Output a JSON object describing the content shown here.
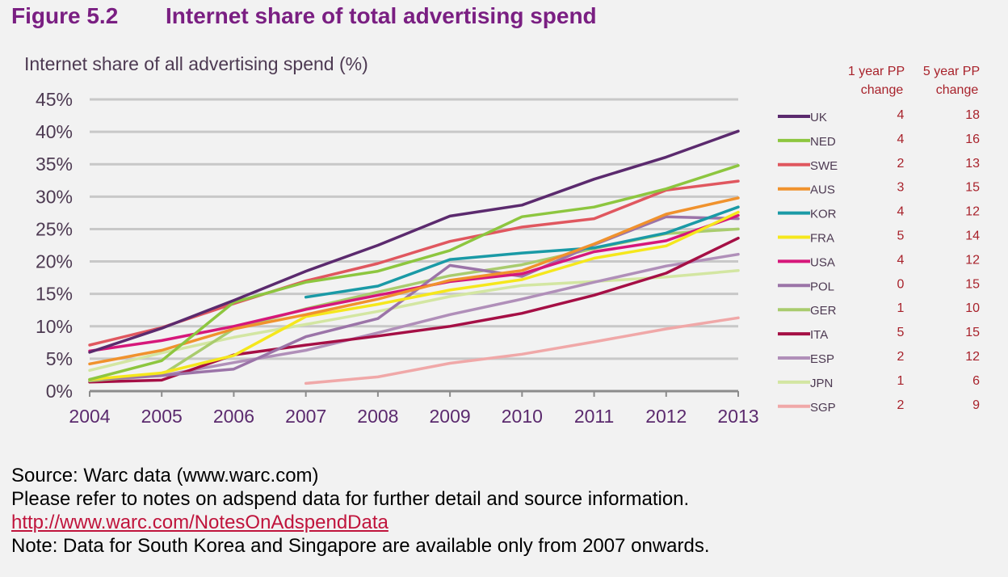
{
  "figure": {
    "number": "Figure 5.2",
    "title": "Internet share of total advertising spend"
  },
  "chart_data": {
    "type": "line",
    "title": "",
    "ylabel": "Internet share of all advertising spend (%)",
    "xlabel": "",
    "x": [
      2004,
      2005,
      2006,
      2007,
      2008,
      2009,
      2010,
      2011,
      2012,
      2013
    ],
    "ylim": [
      0,
      45
    ],
    "yticks": [
      "0%",
      "5%",
      "10%",
      "15%",
      "20%",
      "25%",
      "30%",
      "35%",
      "40%",
      "45%"
    ],
    "grid": true,
    "legend_position": "right",
    "table_headers": [
      "1 year PP change",
      "5 year PP change"
    ],
    "series": [
      {
        "name": "UK",
        "color": "#5b2a6e",
        "one_year": "4",
        "five_year": "18",
        "values": [
          6,
          9.7,
          14,
          18.5,
          22.5,
          27,
          28.7,
          32.7,
          36.1,
          40.1
        ]
      },
      {
        "name": "NED",
        "color": "#8dc63f",
        "one_year": "4",
        "five_year": "16",
        "values": [
          1.8,
          4.7,
          13.7,
          16.8,
          18.5,
          21.7,
          26.9,
          28.4,
          31.2,
          34.8
        ]
      },
      {
        "name": "SWE",
        "color": "#e0575f",
        "one_year": "2",
        "five_year": "13",
        "values": [
          7.1,
          9.8,
          13.5,
          17,
          19.7,
          23.1,
          25.3,
          26.6,
          31,
          32.4
        ]
      },
      {
        "name": "AUS",
        "color": "#f0922d",
        "one_year": "3",
        "five_year": "15",
        "values": [
          4.2,
          6.3,
          9.6,
          11.8,
          14.2,
          17.1,
          18.6,
          22.7,
          27.3,
          29.8
        ]
      },
      {
        "name": "KOR",
        "color": "#1a9aa6",
        "one_year": "4",
        "five_year": "12",
        "values": [
          null,
          null,
          null,
          14.5,
          16.2,
          20.3,
          21.3,
          22.1,
          24.4,
          28.4
        ]
      },
      {
        "name": "FRA",
        "color": "#f5e71c",
        "one_year": "5",
        "five_year": "14",
        "values": [
          1.8,
          2.8,
          5.5,
          11.5,
          13.4,
          15.6,
          17.2,
          20.5,
          22.4,
          27.6
        ]
      },
      {
        "name": "USA",
        "color": "#d6177a",
        "one_year": "4",
        "five_year": "12",
        "values": [
          6.2,
          7.8,
          10,
          12.6,
          14.8,
          16.9,
          18.1,
          21.5,
          23.2,
          27.1
        ]
      },
      {
        "name": "POL",
        "color": "#9b74a8",
        "one_year": "0",
        "five_year": "15",
        "values": [
          1.8,
          2.4,
          3.4,
          8.4,
          11.2,
          19.4,
          17.7,
          22.6,
          26.9,
          26.6
        ]
      },
      {
        "name": "GER",
        "color": "#a9cc6e",
        "one_year": "1",
        "five_year": "10",
        "values": [
          1.6,
          2.5,
          9.6,
          12.7,
          15.3,
          17.8,
          19.5,
          22,
          24.3,
          25
        ]
      },
      {
        "name": "ITA",
        "color": "#a50f45",
        "one_year": "5",
        "five_year": "15",
        "values": [
          1.4,
          1.7,
          5.6,
          7.1,
          8.5,
          10,
          12,
          14.8,
          18.2,
          23.6
        ]
      },
      {
        "name": "ESP",
        "color": "#b08fb9",
        "one_year": "2",
        "five_year": "12",
        "values": [
          1.6,
          2.4,
          4.4,
          6.3,
          9,
          11.8,
          14.2,
          16.8,
          19.3,
          21.1
        ]
      },
      {
        "name": "JPN",
        "color": "#d3e6a2",
        "one_year": "1",
        "five_year": "6",
        "values": [
          3.2,
          5.9,
          8.3,
          10.3,
          12.3,
          14.6,
          16.3,
          16.9,
          17.6,
          18.6
        ]
      },
      {
        "name": "SGP",
        "color": "#f0a8a8",
        "one_year": "2",
        "five_year": "9",
        "values": [
          null,
          null,
          null,
          1.2,
          2.2,
          4.3,
          5.7,
          7.6,
          9.6,
          11.3
        ]
      }
    ]
  },
  "footer": {
    "source": "Source: Warc data (www.warc.com)",
    "refer": "Please refer to notes on adspend data for further detail and source information.",
    "link": "http://www.warc.com/NotesOnAdspendData",
    "note": "Note: Data for South Korea and Singapore are available only from 2007 onwards."
  }
}
